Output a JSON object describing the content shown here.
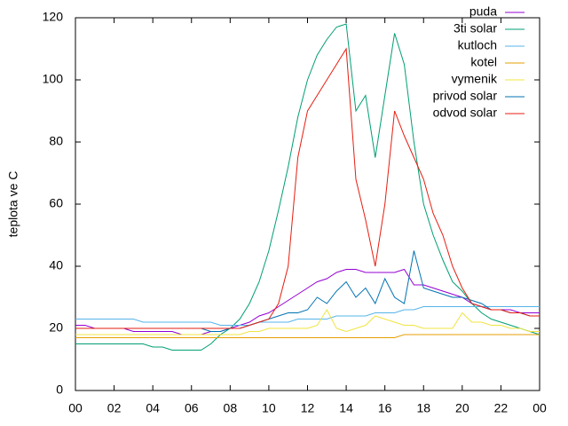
{
  "chart_data": {
    "type": "line",
    "ylabel": "teplota ve C",
    "x": [
      0,
      0.5,
      1,
      1.5,
      2,
      2.5,
      3,
      3.5,
      4,
      4.5,
      5,
      5.5,
      6,
      6.5,
      7,
      7.5,
      8,
      8.5,
      9,
      9.5,
      10,
      10.5,
      11,
      11.5,
      12,
      12.5,
      13,
      13.5,
      14,
      14.5,
      15,
      15.5,
      16,
      16.5,
      17,
      17.5,
      18,
      18.5,
      19,
      19.5,
      20,
      20.5,
      21,
      21.5,
      22,
      22.5,
      23,
      23.5,
      24
    ],
    "series": [
      {
        "name": "puda",
        "color": "#9400d3",
        "values": [
          21,
          21,
          20,
          20,
          20,
          20,
          19,
          19,
          19,
          19,
          19,
          18,
          18,
          18,
          19,
          19,
          20,
          21,
          22,
          24,
          25,
          27,
          29,
          31,
          33,
          35,
          36,
          38,
          39,
          39,
          38,
          38,
          38,
          38,
          39,
          34,
          34,
          33,
          32,
          31,
          30,
          28,
          27,
          26,
          26,
          26,
          25,
          25,
          25
        ]
      },
      {
        "name": "3ti solar",
        "color": "#009e73",
        "values": [
          15,
          15,
          15,
          15,
          15,
          15,
          15,
          15,
          14,
          14,
          13,
          13,
          13,
          13,
          15,
          18,
          20,
          23,
          28,
          35,
          45,
          58,
          72,
          88,
          100,
          108,
          113,
          117,
          118,
          90,
          95,
          75,
          95,
          115,
          105,
          80,
          60,
          50,
          42,
          35,
          32,
          28,
          25,
          23,
          22,
          21,
          20,
          19,
          18
        ]
      },
      {
        "name": "kutloch",
        "color": "#56b4e9",
        "values": [
          23,
          23,
          23,
          23,
          23,
          23,
          23,
          22,
          22,
          22,
          22,
          22,
          22,
          22,
          22,
          21,
          21,
          21,
          21,
          22,
          22,
          22,
          22,
          23,
          23,
          23,
          23,
          24,
          24,
          24,
          24,
          25,
          25,
          25,
          26,
          26,
          27,
          27,
          27,
          27,
          27,
          27,
          27,
          27,
          27,
          27,
          27,
          27,
          27
        ]
      },
      {
        "name": "kotel",
        "color": "#e69f00",
        "values": [
          17,
          17,
          17,
          17,
          17,
          17,
          17,
          17,
          17,
          17,
          17,
          17,
          17,
          17,
          17,
          17,
          17,
          17,
          17,
          17,
          17,
          17,
          17,
          17,
          17,
          17,
          17,
          17,
          17,
          17,
          17,
          17,
          17,
          17,
          18,
          18,
          18,
          18,
          18,
          18,
          18,
          18,
          18,
          18,
          18,
          18,
          18,
          18,
          18
        ]
      },
      {
        "name": "vymenik",
        "color": "#f0e442",
        "values": [
          18,
          18,
          18,
          18,
          18,
          18,
          18,
          18,
          18,
          18,
          18,
          18,
          18,
          18,
          18,
          18,
          18,
          18,
          19,
          19,
          20,
          20,
          20,
          20,
          20,
          21,
          26,
          20,
          19,
          20,
          21,
          24,
          23,
          22,
          21,
          21,
          20,
          20,
          20,
          20,
          25,
          22,
          22,
          21,
          21,
          20,
          20,
          19,
          19
        ]
      },
      {
        "name": "privod solar",
        "color": "#0072b2",
        "values": [
          20,
          20,
          20,
          20,
          20,
          20,
          20,
          20,
          20,
          20,
          20,
          20,
          20,
          20,
          19,
          19,
          20,
          20,
          21,
          22,
          23,
          24,
          25,
          25,
          26,
          30,
          28,
          32,
          35,
          30,
          33,
          28,
          36,
          30,
          28,
          45,
          33,
          32,
          31,
          30,
          30,
          29,
          28,
          26,
          26,
          25,
          25,
          24,
          24
        ]
      },
      {
        "name": "odvod solar",
        "color": "#e51e10",
        "values": [
          20,
          20,
          20,
          20,
          20,
          20,
          20,
          20,
          20,
          20,
          20,
          20,
          20,
          20,
          20,
          20,
          20,
          20,
          21,
          22,
          23,
          28,
          40,
          75,
          90,
          95,
          100,
          105,
          110,
          68,
          55,
          40,
          60,
          90,
          82,
          75,
          68,
          57,
          50,
          40,
          33,
          28,
          27,
          26,
          26,
          25,
          25,
          24,
          24
        ]
      }
    ],
    "xlim": [
      0,
      24
    ],
    "xticks": [
      {
        "value": 0,
        "label": "00"
      },
      {
        "value": 2,
        "label": "02"
      },
      {
        "value": 4,
        "label": "04"
      },
      {
        "value": 6,
        "label": "06"
      },
      {
        "value": 8,
        "label": "08"
      },
      10,
      12,
      14,
      16,
      18,
      20,
      22,
      {
        "value": 24,
        "label": "00"
      }
    ],
    "ylim": [
      0,
      120
    ],
    "yticks": [
      0,
      20,
      40,
      60,
      80,
      100,
      120
    ],
    "legend": "top-right"
  }
}
